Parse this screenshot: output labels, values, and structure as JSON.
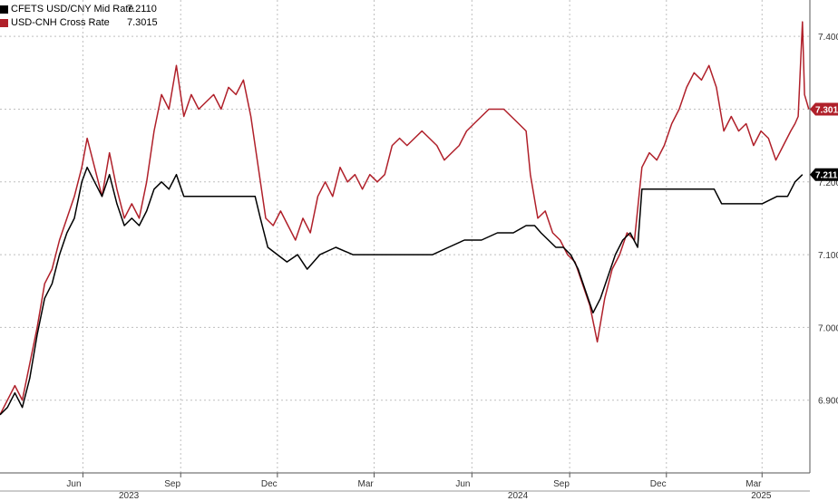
{
  "chart_data": {
    "type": "line",
    "title": "",
    "xlabel": "",
    "ylabel": "",
    "ylim": [
      6.8,
      7.45
    ],
    "y_ticks": [
      "7.400",
      "7.300",
      "7.200",
      "7.100",
      "7.000",
      "6.900"
    ],
    "y_tick_values": [
      7.4,
      7.3,
      7.2,
      7.1,
      7.0,
      6.9
    ],
    "x_ticks": [
      {
        "label": "Jun",
        "date": "2023-06-01"
      },
      {
        "label": "Sep",
        "date": "2023-09-01"
      },
      {
        "label": "Dec",
        "date": "2023-12-01"
      },
      {
        "label": "Mar",
        "date": "2024-03-01"
      },
      {
        "label": "Jun",
        "date": "2024-06-01"
      },
      {
        "label": "Sep",
        "date": "2024-09-01"
      },
      {
        "label": "Dec",
        "date": "2024-12-01"
      },
      {
        "label": "Mar",
        "date": "2025-03-01"
      }
    ],
    "years": [
      {
        "label": "2023",
        "date": "2023-07-15"
      },
      {
        "label": "2024",
        "date": "2024-07-15"
      },
      {
        "label": "2025",
        "date": "2025-03-01"
      }
    ],
    "x_range": [
      "2023-03-15",
      "2025-04-15"
    ],
    "grid": true,
    "legend_position": "top-left",
    "series": [
      {
        "name": "CFETS USD/CNY Mid Rate",
        "last_value": "7.2110",
        "badge": "7.211",
        "color": "#000000",
        "points": [
          [
            "2023-03-15",
            6.88
          ],
          [
            "2023-03-22",
            6.89
          ],
          [
            "2023-03-29",
            6.91
          ],
          [
            "2023-04-05",
            6.89
          ],
          [
            "2023-04-12",
            6.93
          ],
          [
            "2023-04-19",
            6.99
          ],
          [
            "2023-04-26",
            7.04
          ],
          [
            "2023-05-03",
            7.06
          ],
          [
            "2023-05-10",
            7.1
          ],
          [
            "2023-05-17",
            7.13
          ],
          [
            "2023-05-24",
            7.15
          ],
          [
            "2023-05-31",
            7.2
          ],
          [
            "2023-06-05",
            7.22
          ],
          [
            "2023-06-12",
            7.2
          ],
          [
            "2023-06-19",
            7.18
          ],
          [
            "2023-06-26",
            7.21
          ],
          [
            "2023-07-03",
            7.17
          ],
          [
            "2023-07-10",
            7.14
          ],
          [
            "2023-07-17",
            7.15
          ],
          [
            "2023-07-24",
            7.14
          ],
          [
            "2023-07-31",
            7.16
          ],
          [
            "2023-08-07",
            7.19
          ],
          [
            "2023-08-14",
            7.2
          ],
          [
            "2023-08-21",
            7.19
          ],
          [
            "2023-08-28",
            7.21
          ],
          [
            "2023-09-04",
            7.18
          ],
          [
            "2023-09-15",
            7.18
          ],
          [
            "2023-10-01",
            7.18
          ],
          [
            "2023-10-20",
            7.18
          ],
          [
            "2023-11-10",
            7.18
          ],
          [
            "2023-11-15",
            7.15
          ],
          [
            "2023-11-22",
            7.11
          ],
          [
            "2023-12-01",
            7.1
          ],
          [
            "2023-12-10",
            7.09
          ],
          [
            "2023-12-20",
            7.1
          ],
          [
            "2023-12-29",
            7.08
          ],
          [
            "2024-01-10",
            7.1
          ],
          [
            "2024-01-25",
            7.11
          ],
          [
            "2024-02-10",
            7.1
          ],
          [
            "2024-03-01",
            7.1
          ],
          [
            "2024-03-20",
            7.1
          ],
          [
            "2024-04-05",
            7.1
          ],
          [
            "2024-04-25",
            7.1
          ],
          [
            "2024-05-10",
            7.11
          ],
          [
            "2024-05-25",
            7.12
          ],
          [
            "2024-06-10",
            7.12
          ],
          [
            "2024-06-25",
            7.13
          ],
          [
            "2024-07-10",
            7.13
          ],
          [
            "2024-07-22",
            7.14
          ],
          [
            "2024-07-30",
            7.14
          ],
          [
            "2024-08-05",
            7.13
          ],
          [
            "2024-08-12",
            7.12
          ],
          [
            "2024-08-19",
            7.11
          ],
          [
            "2024-08-26",
            7.11
          ],
          [
            "2024-09-02",
            7.1
          ],
          [
            "2024-09-09",
            7.08
          ],
          [
            "2024-09-16",
            7.05
          ],
          [
            "2024-09-23",
            7.02
          ],
          [
            "2024-09-30",
            7.04
          ],
          [
            "2024-10-07",
            7.07
          ],
          [
            "2024-10-14",
            7.1
          ],
          [
            "2024-10-21",
            7.12
          ],
          [
            "2024-10-28",
            7.13
          ],
          [
            "2024-11-04",
            7.11
          ],
          [
            "2024-11-08",
            7.19
          ],
          [
            "2024-11-15",
            7.19
          ],
          [
            "2024-11-22",
            7.19
          ],
          [
            "2024-12-01",
            7.19
          ],
          [
            "2024-12-15",
            7.19
          ],
          [
            "2025-01-01",
            7.19
          ],
          [
            "2025-01-15",
            7.19
          ],
          [
            "2025-01-22",
            7.17
          ],
          [
            "2025-02-01",
            7.17
          ],
          [
            "2025-02-15",
            7.17
          ],
          [
            "2025-03-01",
            7.17
          ],
          [
            "2025-03-15",
            7.18
          ],
          [
            "2025-03-25",
            7.18
          ],
          [
            "2025-04-01",
            7.2
          ],
          [
            "2025-04-08",
            7.21
          ]
        ]
      },
      {
        "name": "USD-CNH Cross Rate",
        "last_value": "7.3015",
        "badge": "7.301",
        "color": "#b0202a",
        "points": [
          [
            "2023-03-15",
            6.88
          ],
          [
            "2023-03-22",
            6.9
          ],
          [
            "2023-03-29",
            6.92
          ],
          [
            "2023-04-05",
            6.9
          ],
          [
            "2023-04-12",
            6.95
          ],
          [
            "2023-04-19",
            7.0
          ],
          [
            "2023-04-26",
            7.06
          ],
          [
            "2023-05-03",
            7.08
          ],
          [
            "2023-05-10",
            7.12
          ],
          [
            "2023-05-17",
            7.15
          ],
          [
            "2023-05-24",
            7.18
          ],
          [
            "2023-05-31",
            7.22
          ],
          [
            "2023-06-05",
            7.26
          ],
          [
            "2023-06-12",
            7.22
          ],
          [
            "2023-06-19",
            7.18
          ],
          [
            "2023-06-26",
            7.24
          ],
          [
            "2023-07-03",
            7.19
          ],
          [
            "2023-07-10",
            7.15
          ],
          [
            "2023-07-17",
            7.17
          ],
          [
            "2023-07-24",
            7.15
          ],
          [
            "2023-07-31",
            7.2
          ],
          [
            "2023-08-07",
            7.27
          ],
          [
            "2023-08-14",
            7.32
          ],
          [
            "2023-08-21",
            7.3
          ],
          [
            "2023-08-28",
            7.36
          ],
          [
            "2023-09-04",
            7.29
          ],
          [
            "2023-09-11",
            7.32
          ],
          [
            "2023-09-18",
            7.3
          ],
          [
            "2023-09-25",
            7.31
          ],
          [
            "2023-10-02",
            7.32
          ],
          [
            "2023-10-09",
            7.3
          ],
          [
            "2023-10-16",
            7.33
          ],
          [
            "2023-10-23",
            7.32
          ],
          [
            "2023-10-30",
            7.34
          ],
          [
            "2023-11-06",
            7.29
          ],
          [
            "2023-11-13",
            7.22
          ],
          [
            "2023-11-20",
            7.15
          ],
          [
            "2023-11-27",
            7.14
          ],
          [
            "2023-12-04",
            7.16
          ],
          [
            "2023-12-11",
            7.14
          ],
          [
            "2023-12-18",
            7.12
          ],
          [
            "2023-12-25",
            7.15
          ],
          [
            "2024-01-01",
            7.13
          ],
          [
            "2024-01-08",
            7.18
          ],
          [
            "2024-01-15",
            7.2
          ],
          [
            "2024-01-22",
            7.18
          ],
          [
            "2024-01-29",
            7.22
          ],
          [
            "2024-02-05",
            7.2
          ],
          [
            "2024-02-12",
            7.21
          ],
          [
            "2024-02-19",
            7.19
          ],
          [
            "2024-02-26",
            7.21
          ],
          [
            "2024-03-04",
            7.2
          ],
          [
            "2024-03-11",
            7.21
          ],
          [
            "2024-03-18",
            7.25
          ],
          [
            "2024-03-25",
            7.26
          ],
          [
            "2024-04-01",
            7.25
          ],
          [
            "2024-04-08",
            7.26
          ],
          [
            "2024-04-15",
            7.27
          ],
          [
            "2024-04-22",
            7.26
          ],
          [
            "2024-04-29",
            7.25
          ],
          [
            "2024-05-06",
            7.23
          ],
          [
            "2024-05-13",
            7.24
          ],
          [
            "2024-05-20",
            7.25
          ],
          [
            "2024-05-27",
            7.27
          ],
          [
            "2024-06-03",
            7.28
          ],
          [
            "2024-06-10",
            7.29
          ],
          [
            "2024-06-17",
            7.3
          ],
          [
            "2024-06-24",
            7.3
          ],
          [
            "2024-07-01",
            7.3
          ],
          [
            "2024-07-08",
            7.29
          ],
          [
            "2024-07-15",
            7.28
          ],
          [
            "2024-07-22",
            7.27
          ],
          [
            "2024-07-26",
            7.21
          ],
          [
            "2024-08-02",
            7.15
          ],
          [
            "2024-08-09",
            7.16
          ],
          [
            "2024-08-16",
            7.13
          ],
          [
            "2024-08-23",
            7.12
          ],
          [
            "2024-08-30",
            7.1
          ],
          [
            "2024-09-06",
            7.09
          ],
          [
            "2024-09-13",
            7.06
          ],
          [
            "2024-09-20",
            7.03
          ],
          [
            "2024-09-27",
            6.98
          ],
          [
            "2024-10-04",
            7.04
          ],
          [
            "2024-10-11",
            7.08
          ],
          [
            "2024-10-18",
            7.1
          ],
          [
            "2024-10-25",
            7.13
          ],
          [
            "2024-11-01",
            7.12
          ],
          [
            "2024-11-08",
            7.22
          ],
          [
            "2024-11-15",
            7.24
          ],
          [
            "2024-11-22",
            7.23
          ],
          [
            "2024-11-29",
            7.25
          ],
          [
            "2024-12-06",
            7.28
          ],
          [
            "2024-12-13",
            7.3
          ],
          [
            "2024-12-20",
            7.33
          ],
          [
            "2024-12-27",
            7.35
          ],
          [
            "2025-01-03",
            7.34
          ],
          [
            "2025-01-10",
            7.36
          ],
          [
            "2025-01-17",
            7.33
          ],
          [
            "2025-01-24",
            7.27
          ],
          [
            "2025-01-31",
            7.29
          ],
          [
            "2025-02-07",
            7.27
          ],
          [
            "2025-02-14",
            7.28
          ],
          [
            "2025-02-21",
            7.25
          ],
          [
            "2025-02-28",
            7.27
          ],
          [
            "2025-03-07",
            7.26
          ],
          [
            "2025-03-14",
            7.23
          ],
          [
            "2025-03-21",
            7.25
          ],
          [
            "2025-03-28",
            7.27
          ],
          [
            "2025-04-01",
            7.28
          ],
          [
            "2025-04-04",
            7.29
          ],
          [
            "2025-04-08",
            7.42
          ],
          [
            "2025-04-10",
            7.32
          ],
          [
            "2025-04-14",
            7.3
          ]
        ]
      }
    ]
  }
}
